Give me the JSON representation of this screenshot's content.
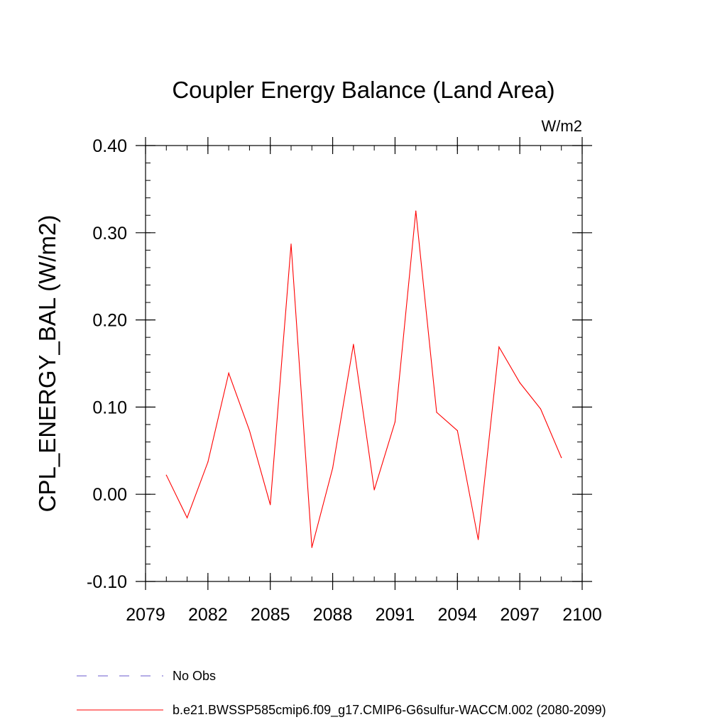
{
  "chart_data": {
    "type": "line",
    "title": "Coupler Energy Balance (Land Area)",
    "units": "W/m2",
    "ylabel": "CPL_ENERGY_BAL  (W/m2)",
    "xlabel": "",
    "xlim": [
      2079,
      2100
    ],
    "ylim": [
      -0.1,
      0.4
    ],
    "x_ticks": [
      "2079",
      "2082",
      "2085",
      "2088",
      "2091",
      "2094",
      "2097",
      "2100"
    ],
    "y_ticks": [
      "-0.10",
      "0.00",
      "0.10",
      "0.20",
      "0.30",
      "0.40"
    ],
    "grid": false,
    "legend_position": "bottom-left",
    "x": [
      2080,
      2081,
      2082,
      2083,
      2084,
      2085,
      2086,
      2087,
      2088,
      2089,
      2090,
      2091,
      2092,
      2093,
      2094,
      2095,
      2096,
      2097,
      2098,
      2099
    ],
    "series": [
      {
        "name": "b.e21.BWSSP585cmip6.f09_g17.CMIP6-G6sulfur-WACCM.002 (2080-2099)",
        "color": "#ff0000",
        "dash": "solid",
        "values": [
          0.022,
          -0.027,
          0.037,
          0.139,
          0.073,
          -0.012,
          0.287,
          -0.061,
          0.03,
          0.172,
          0.005,
          0.083,
          0.325,
          0.094,
          0.073,
          -0.052,
          0.169,
          0.128,
          0.098,
          0.042
        ]
      }
    ],
    "legend": [
      {
        "label": "No Obs",
        "color": "#6a5acd",
        "dash": "dashed"
      },
      {
        "label": "b.e21.BWSSP585cmip6.f09_g17.CMIP6-G6sulfur-WACCM.002 (2080-2099)",
        "color": "#ff0000",
        "dash": "solid"
      }
    ]
  }
}
